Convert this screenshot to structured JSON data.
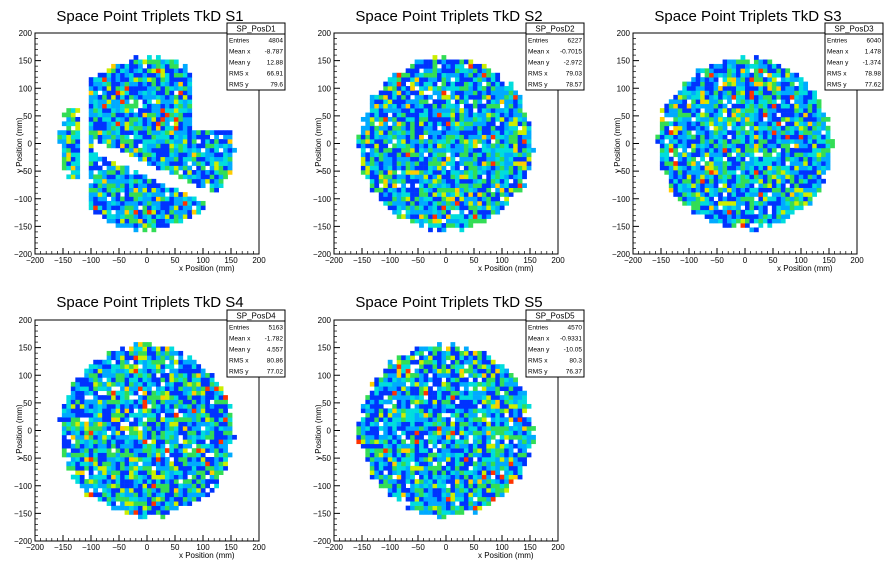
{
  "chart_data": [
    {
      "type": "heatmap",
      "title": "Space Point Triplets TkD S1",
      "xlabel": "x Position (mm)",
      "ylabel": "y Position (mm)",
      "xlim": [
        -200,
        200
      ],
      "ylim": [
        -200,
        200
      ],
      "x_ticks": [
        "−200",
        "−150",
        "−100",
        "−50",
        "0",
        "50",
        "100",
        "150",
        "200"
      ],
      "y_ticks": [
        "−200",
        "−150",
        "−100",
        "−50",
        "0",
        "50",
        "100",
        "150",
        "200"
      ],
      "stats": {
        "name": "SP_PosD1",
        "rows": [
          {
            "label": "Entries",
            "value": "4804"
          },
          {
            "label": "Mean x",
            "value": "-8.787"
          },
          {
            "label": "Mean y",
            "value": "12.88"
          },
          {
            "label": "RMS x",
            "value": "66.91"
          },
          {
            "label": "RMS y",
            "value": "79.6"
          }
        ]
      },
      "distribution": {
        "shape": "disc",
        "radius": 160,
        "center": [
          0,
          0
        ],
        "gaps": "upper-left columns and lower-right diagonal wedge missing",
        "bin_width": 8,
        "seed": 1
      }
    },
    {
      "type": "heatmap",
      "title": "Space Point Triplets TkD S2",
      "xlabel": "x Position (mm)",
      "ylabel": "y Position (mm)",
      "xlim": [
        -200,
        200
      ],
      "ylim": [
        -200,
        200
      ],
      "x_ticks": [
        "−200",
        "−150",
        "−100",
        "−50",
        "0",
        "50",
        "100",
        "150",
        "200"
      ],
      "y_ticks": [
        "−200",
        "−150",
        "−100",
        "−50",
        "0",
        "50",
        "100",
        "150",
        "200"
      ],
      "stats": {
        "name": "SP_PosD2",
        "rows": [
          {
            "label": "Entries",
            "value": "6227"
          },
          {
            "label": "Mean x",
            "value": "-0.7015"
          },
          {
            "label": "Mean y",
            "value": "-2.972"
          },
          {
            "label": "RMS x",
            "value": "79.03"
          },
          {
            "label": "RMS y",
            "value": "78.57"
          }
        ]
      },
      "distribution": {
        "shape": "disc",
        "radius": 160,
        "center": [
          0,
          0
        ],
        "gaps": "none",
        "bin_width": 8,
        "seed": 2
      }
    },
    {
      "type": "heatmap",
      "title": "Space Point Triplets TkD S3",
      "xlabel": "x Position (mm)",
      "ylabel": "y Position (mm)",
      "xlim": [
        -200,
        200
      ],
      "ylim": [
        -200,
        200
      ],
      "x_ticks": [
        "−200",
        "−150",
        "−100",
        "−50",
        "0",
        "50",
        "100",
        "150",
        "200"
      ],
      "y_ticks": [
        "−200",
        "−150",
        "−100",
        "−50",
        "0",
        "50",
        "100",
        "150",
        "200"
      ],
      "stats": {
        "name": "SP_PosD3",
        "rows": [
          {
            "label": "Entries",
            "value": "6040"
          },
          {
            "label": "Mean x",
            "value": "1.478"
          },
          {
            "label": "Mean y",
            "value": "-1.374"
          },
          {
            "label": "RMS x",
            "value": "78.98"
          },
          {
            "label": "RMS y",
            "value": "77.62"
          }
        ]
      },
      "distribution": {
        "shape": "disc",
        "radius": 160,
        "center": [
          0,
          0
        ],
        "gaps": "none",
        "bin_width": 8,
        "seed": 3
      }
    },
    {
      "type": "heatmap",
      "title": "Space Point Triplets TkD S4",
      "xlabel": "x Position (mm)",
      "ylabel": "y Position (mm)",
      "xlim": [
        -200,
        200
      ],
      "ylim": [
        -200,
        200
      ],
      "x_ticks": [
        "−200",
        "−150",
        "−100",
        "−50",
        "0",
        "50",
        "100",
        "150",
        "200"
      ],
      "y_ticks": [
        "−200",
        "−150",
        "−100",
        "−50",
        "0",
        "50",
        "100",
        "150",
        "200"
      ],
      "stats": {
        "name": "SP_PosD4",
        "rows": [
          {
            "label": "Entries",
            "value": "5163"
          },
          {
            "label": "Mean x",
            "value": "-1.782"
          },
          {
            "label": "Mean y",
            "value": "4.557"
          },
          {
            "label": "RMS x",
            "value": "80.86"
          },
          {
            "label": "RMS y",
            "value": "77.02"
          }
        ]
      },
      "distribution": {
        "shape": "disc",
        "radius": 160,
        "center": [
          0,
          0
        ],
        "gaps": "none",
        "bin_width": 8,
        "seed": 4
      }
    },
    {
      "type": "heatmap",
      "title": "Space Point Triplets TkD S5",
      "xlabel": "x Position (mm)",
      "ylabel": "y Position (mm)",
      "xlim": [
        -200,
        200
      ],
      "ylim": [
        -200,
        200
      ],
      "x_ticks": [
        "−200",
        "−150",
        "−100",
        "−50",
        "0",
        "50",
        "100",
        "150",
        "200"
      ],
      "y_ticks": [
        "−200",
        "−150",
        "−100",
        "−50",
        "0",
        "50",
        "100",
        "150",
        "200"
      ],
      "stats": {
        "name": "SP_PosD5",
        "rows": [
          {
            "label": "Entries",
            "value": "4570"
          },
          {
            "label": "Mean x",
            "value": "-0.9331"
          },
          {
            "label": "Mean y",
            "value": "-10.05"
          },
          {
            "label": "RMS x",
            "value": "80.3"
          },
          {
            "label": "RMS y",
            "value": "76.37"
          }
        ]
      },
      "distribution": {
        "shape": "disc",
        "radius": 160,
        "center": [
          0,
          0
        ],
        "gaps": "none",
        "bin_width": 8,
        "seed": 5
      }
    }
  ],
  "palette": [
    "#0033ff",
    "#00aaff",
    "#00dddd",
    "#33dd55",
    "#ccee00",
    "#ffcc00",
    "#ff3300"
  ]
}
